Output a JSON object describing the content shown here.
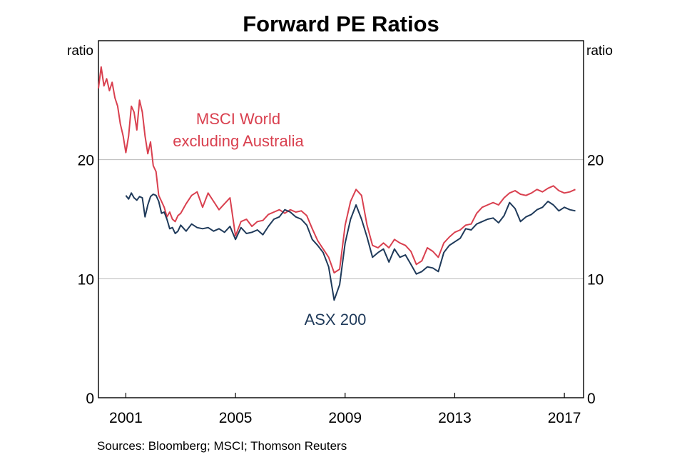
{
  "chart_data": {
    "type": "line",
    "title": "Forward PE Ratios",
    "ylabel_left": "ratio",
    "ylabel_right": "ratio",
    "xlim": [
      2000,
      2017.7
    ],
    "ylim": [
      0,
      30
    ],
    "yticks": [
      0,
      10,
      20
    ],
    "xticks": [
      2001,
      2005,
      2009,
      2013,
      2017
    ],
    "grid": true,
    "source": "Sources: Bloomberg; MSCI; Thomson Reuters",
    "colors": {
      "msci": "#d9404f",
      "asx": "#1f3a5a",
      "grid": "#b8b8b8"
    },
    "series": [
      {
        "name": "MSCI World excluding Australia",
        "label_lines": [
          "MSCI World",
          "excluding Australia"
        ],
        "x": [
          2000.0,
          2000.1,
          2000.2,
          2000.3,
          2000.4,
          2000.5,
          2000.6,
          2000.7,
          2000.8,
          2000.9,
          2001.0,
          2001.1,
          2001.2,
          2001.3,
          2001.4,
          2001.5,
          2001.6,
          2001.7,
          2001.8,
          2001.9,
          2002.0,
          2002.1,
          2002.2,
          2002.3,
          2002.4,
          2002.5,
          2002.6,
          2002.7,
          2002.8,
          2002.9,
          2003.0,
          2003.2,
          2003.4,
          2003.6,
          2003.8,
          2004.0,
          2004.2,
          2004.4,
          2004.6,
          2004.8,
          2005.0,
          2005.2,
          2005.4,
          2005.6,
          2005.8,
          2006.0,
          2006.2,
          2006.4,
          2006.6,
          2006.8,
          2007.0,
          2007.2,
          2007.4,
          2007.6,
          2007.8,
          2008.0,
          2008.2,
          2008.4,
          2008.6,
          2008.8,
          2009.0,
          2009.2,
          2009.4,
          2009.6,
          2009.8,
          2010.0,
          2010.2,
          2010.4,
          2010.6,
          2010.8,
          2011.0,
          2011.2,
          2011.4,
          2011.6,
          2011.8,
          2012.0,
          2012.2,
          2012.4,
          2012.6,
          2012.8,
          2013.0,
          2013.2,
          2013.4,
          2013.6,
          2013.8,
          2014.0,
          2014.2,
          2014.4,
          2014.6,
          2014.8,
          2015.0,
          2015.2,
          2015.4,
          2015.6,
          2015.8,
          2016.0,
          2016.2,
          2016.4,
          2016.6,
          2016.8,
          2017.0,
          2017.2,
          2017.4
        ],
        "values": [
          26.0,
          27.8,
          26.2,
          26.8,
          25.8,
          26.5,
          25.2,
          24.5,
          23.0,
          22.0,
          20.6,
          22.0,
          24.5,
          24.0,
          22.5,
          25.0,
          24.0,
          22.0,
          20.5,
          21.5,
          19.5,
          19.0,
          17.0,
          16.5,
          16.0,
          15.2,
          15.6,
          15.0,
          14.8,
          15.3,
          15.5,
          16.3,
          17.0,
          17.3,
          16.0,
          17.2,
          16.5,
          15.8,
          16.3,
          16.8,
          13.6,
          14.8,
          15.0,
          14.4,
          14.8,
          14.9,
          15.4,
          15.6,
          15.8,
          15.5,
          15.8,
          15.6,
          15.7,
          15.3,
          14.2,
          13.2,
          12.5,
          11.8,
          10.5,
          10.8,
          14.5,
          16.5,
          17.5,
          17.0,
          14.5,
          12.8,
          12.6,
          13.0,
          12.6,
          13.3,
          13.0,
          12.8,
          12.3,
          11.2,
          11.5,
          12.6,
          12.3,
          11.8,
          13.0,
          13.5,
          13.9,
          14.1,
          14.5,
          14.6,
          15.5,
          16.0,
          16.2,
          16.4,
          16.2,
          16.8,
          17.2,
          17.4,
          17.1,
          17.0,
          17.2,
          17.5,
          17.3,
          17.6,
          17.8,
          17.4,
          17.2,
          17.3,
          17.5
        ]
      },
      {
        "name": "ASX 200",
        "label_lines": [
          "ASX 200"
        ],
        "x": [
          2001.0,
          2001.1,
          2001.2,
          2001.3,
          2001.4,
          2001.5,
          2001.6,
          2001.7,
          2001.8,
          2001.9,
          2002.0,
          2002.1,
          2002.2,
          2002.3,
          2002.4,
          2002.5,
          2002.6,
          2002.7,
          2002.8,
          2002.9,
          2003.0,
          2003.2,
          2003.4,
          2003.6,
          2003.8,
          2004.0,
          2004.2,
          2004.4,
          2004.6,
          2004.8,
          2005.0,
          2005.2,
          2005.4,
          2005.6,
          2005.8,
          2006.0,
          2006.2,
          2006.4,
          2006.6,
          2006.8,
          2007.0,
          2007.2,
          2007.4,
          2007.6,
          2007.8,
          2008.0,
          2008.2,
          2008.4,
          2008.6,
          2008.8,
          2009.0,
          2009.2,
          2009.4,
          2009.6,
          2009.8,
          2010.0,
          2010.2,
          2010.4,
          2010.6,
          2010.8,
          2011.0,
          2011.2,
          2011.4,
          2011.6,
          2011.8,
          2012.0,
          2012.2,
          2012.4,
          2012.6,
          2012.8,
          2013.0,
          2013.2,
          2013.4,
          2013.6,
          2013.8,
          2014.0,
          2014.2,
          2014.4,
          2014.6,
          2014.8,
          2015.0,
          2015.2,
          2015.4,
          2015.6,
          2015.8,
          2016.0,
          2016.2,
          2016.4,
          2016.6,
          2016.8,
          2017.0,
          2017.2,
          2017.4
        ],
        "values": [
          17.0,
          16.7,
          17.2,
          16.8,
          16.6,
          16.9,
          16.8,
          15.2,
          16.2,
          16.9,
          17.1,
          17.0,
          16.5,
          15.5,
          15.6,
          15.0,
          14.2,
          14.3,
          13.8,
          14.0,
          14.5,
          14.0,
          14.6,
          14.3,
          14.2,
          14.3,
          14.0,
          14.2,
          13.9,
          14.4,
          13.3,
          14.3,
          13.8,
          13.9,
          14.1,
          13.7,
          14.4,
          15.0,
          15.2,
          15.8,
          15.6,
          15.2,
          15.0,
          14.5,
          13.3,
          12.8,
          12.2,
          11.0,
          8.2,
          9.5,
          13.0,
          15.0,
          16.2,
          15.0,
          13.5,
          11.8,
          12.2,
          12.5,
          11.4,
          12.5,
          11.8,
          12.0,
          11.2,
          10.4,
          10.6,
          11.0,
          10.9,
          10.6,
          12.2,
          12.8,
          13.1,
          13.4,
          14.2,
          14.1,
          14.6,
          14.8,
          15.0,
          15.1,
          14.7,
          15.3,
          16.4,
          15.9,
          14.8,
          15.2,
          15.4,
          15.8,
          16.0,
          16.5,
          16.2,
          15.7,
          16.0,
          15.8,
          15.7
        ]
      }
    ]
  }
}
